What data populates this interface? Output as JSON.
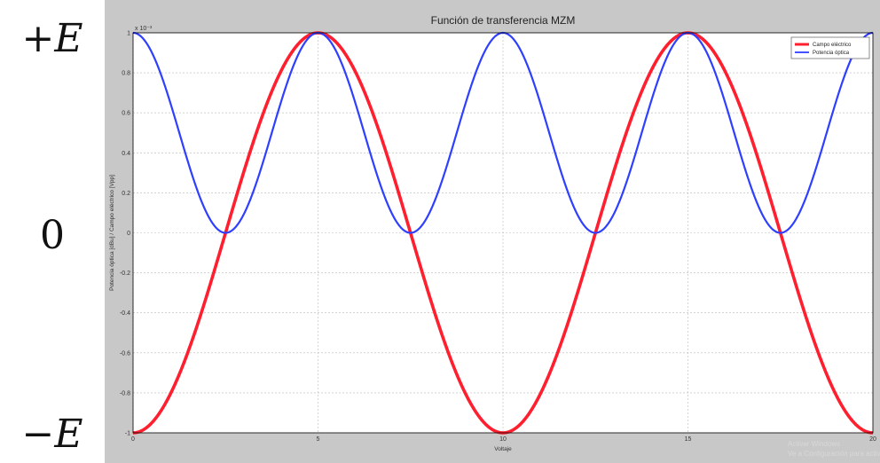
{
  "side_labels": {
    "top": "+E",
    "middle": "0",
    "bottom": "−E"
  },
  "watermark": {
    "line1": "Activar Windows",
    "line2": "Ve a Configuración para activar"
  },
  "colors": {
    "red": "#ff1f2e",
    "blue": "#2f3fff",
    "grid": "#b8b8b8",
    "figure_bg": "#c8c8c8"
  },
  "chart_data": {
    "type": "line",
    "title": "Función de transferencia MZM",
    "xlabel": "Voltaje",
    "ylabel": "Potencia óptica [dBu] / Campo eléctrico [Vpp]",
    "exponent_label": "x 10⁻³",
    "xlim": [
      0,
      20
    ],
    "ylim": [
      -1,
      1
    ],
    "xticks": [
      0,
      5,
      10,
      15,
      20
    ],
    "yticks": [
      -1,
      -0.8,
      -0.6,
      -0.4,
      -0.2,
      0,
      0.2,
      0.4,
      0.6,
      0.8,
      1
    ],
    "yticklabels": [
      "-1",
      "-0.8",
      "-0.6",
      "-0.4",
      "-0.2",
      "0",
      "0.2",
      "0.4",
      "0.6",
      "0.8",
      "1"
    ],
    "xticklabels": [
      "0",
      "5",
      "10",
      "15",
      "20"
    ],
    "grid": true,
    "legend_position": "top-right",
    "series": [
      {
        "name": "Campo eléctrico",
        "color": "#ff1f2e",
        "x": [
          0,
          1.25,
          2.5,
          3.75,
          5,
          6.25,
          7.5,
          8.75,
          10,
          11.25,
          12.5,
          13.75,
          15,
          16.25,
          17.5,
          18.75,
          20
        ],
        "values": [
          -1,
          -0.707,
          0,
          0.707,
          1,
          0.707,
          0,
          -0.707,
          -1,
          -0.707,
          0,
          0.707,
          1,
          0.707,
          0,
          -0.707,
          -1
        ]
      },
      {
        "name": "Potencia óptica",
        "color": "#2f3fff",
        "x": [
          0,
          1.25,
          2.5,
          3.75,
          5,
          6.25,
          7.5,
          8.75,
          10,
          11.25,
          12.5,
          13.75,
          15,
          16.25,
          17.5,
          18.75,
          20
        ],
        "values": [
          1,
          0.5,
          0,
          0.5,
          1,
          0.5,
          0,
          0.5,
          1,
          0.5,
          0,
          0.5,
          1,
          0.5,
          0,
          0.5,
          1
        ]
      }
    ]
  }
}
